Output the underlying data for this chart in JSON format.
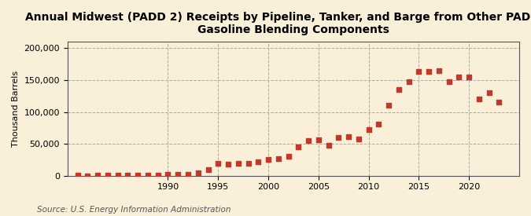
{
  "title": "Annual Midwest (PADD 2) Receipts by Pipeline, Tanker, and Barge from Other PADDs of\nGasoline Blending Components",
  "ylabel": "Thousand Barrels",
  "source": "Source: U.S. Energy Information Administration",
  "background_color": "#faefd8",
  "plot_background_color": "#faefd8",
  "marker_color": "#c0392b",
  "years": [
    1981,
    1982,
    1983,
    1984,
    1985,
    1986,
    1987,
    1988,
    1989,
    1990,
    1991,
    1992,
    1993,
    1994,
    1995,
    1996,
    1997,
    1998,
    1999,
    2000,
    2001,
    2002,
    2003,
    2004,
    2005,
    2006,
    2007,
    2008,
    2009,
    2010,
    2011,
    2012,
    2013,
    2014,
    2015,
    2016,
    2017,
    2018,
    2019,
    2020,
    2021,
    2022,
    2023
  ],
  "values": [
    500,
    300,
    600,
    1000,
    800,
    700,
    900,
    1200,
    1500,
    1800,
    2000,
    2500,
    5000,
    9000,
    19000,
    18000,
    20000,
    20000,
    22000,
    25000,
    27000,
    30000,
    45000,
    55000,
    57000,
    48000,
    60000,
    61000,
    58000,
    73000,
    81000,
    110000,
    135000,
    148000,
    163000,
    163000,
    165000,
    147000,
    155000,
    155000,
    120000,
    130000,
    116000
  ],
  "xlim": [
    1980,
    2025
  ],
  "ylim": [
    0,
    210000
  ],
  "yticks": [
    0,
    50000,
    100000,
    150000,
    200000
  ],
  "xticks": [
    1990,
    1995,
    2000,
    2005,
    2010,
    2015,
    2020
  ],
  "grid_color": "#aaaaaa",
  "title_fontsize": 10,
  "axis_fontsize": 8,
  "source_fontsize": 7.5
}
